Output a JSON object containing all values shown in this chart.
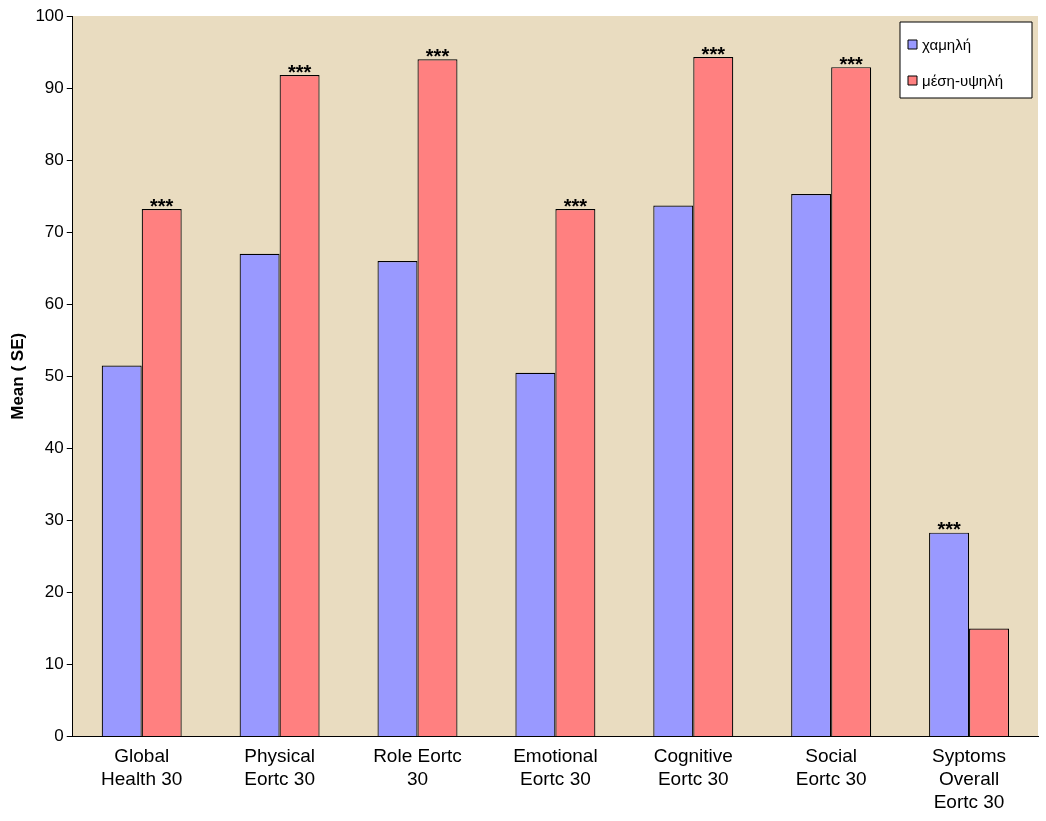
{
  "chart_data": {
    "type": "bar",
    "categories": [
      "Global Health 30",
      "Physical Eortc 30",
      "Role Eortc 30",
      "Emotional Eortc 30",
      "Cognitive Eortc 30",
      "Social Eortc 30",
      "Syptoms Overall Eortc 30"
    ],
    "series": [
      {
        "name": "χαμηλή",
        "color": "#9999ff",
        "values": [
          51.5,
          67,
          66,
          50.5,
          73.7,
          75.3,
          28.3
        ]
      },
      {
        "name": "μέση-υψηλή",
        "color": "#ff8080",
        "values": [
          73.2,
          91.8,
          94,
          73.2,
          94.3,
          92.9,
          15
        ]
      }
    ],
    "ylabel": "Mean ( SE)",
    "ylim": [
      0,
      100
    ],
    "yticks": [
      0,
      10,
      20,
      30,
      40,
      50,
      60,
      70,
      80,
      90,
      100
    ],
    "grid": false,
    "legend": "top right",
    "annotations": [
      {
        "text": "***",
        "x": "Global Health 30",
        "y": 73.2
      },
      {
        "text": "***",
        "x": "Physical Eortc 30",
        "y": 91.8
      },
      {
        "text": "***",
        "x": "Role Eortc 30",
        "y": 94
      },
      {
        "text": "***",
        "x": "Emotional Eortc 30",
        "y": 73.2
      },
      {
        "text": "***",
        "x": "Cognitive Eortc 30",
        "y": 94.3
      },
      {
        "text": "***",
        "x": "Social Eortc 30",
        "y": 92.9
      },
      {
        "text": "***",
        "x": "Syptoms Overall Eortc 30",
        "y": 28.3
      }
    ]
  }
}
